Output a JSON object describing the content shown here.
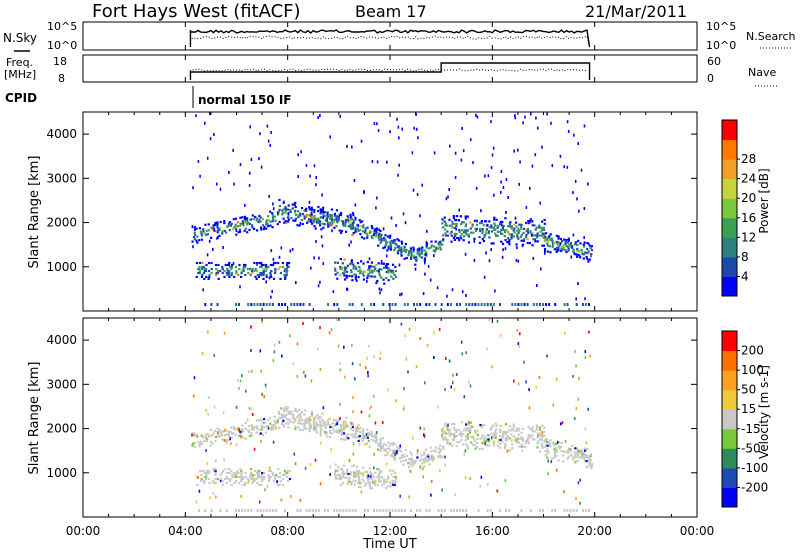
{
  "header": {
    "station": "Fort Hays West (fitACF)",
    "beam": "Beam 17",
    "date": "21/Mar/2011"
  },
  "status_panels": {
    "nsky_label": "N.Sky",
    "nsky_ticks": [
      "10^5",
      "10^0"
    ],
    "nsearch_label": "N.Search",
    "nsearch_ticks": [
      "10^5",
      "10^0"
    ],
    "freq_label": "Freq.",
    "freq_unit": "[MHz]",
    "freq_ticks": [
      "18",
      "8"
    ],
    "nave_label": "Nave",
    "nave_ticks": [
      "60",
      "0"
    ],
    "cpid_label": "CPID",
    "cpid_name": "normal 150 IF"
  },
  "chart_data": [
    {
      "type": "heatmap",
      "name": "power",
      "ylabel": "Slant Range [km]",
      "ylim": [
        0,
        4500
      ],
      "yticks": [
        "1000",
        "2000",
        "3000",
        "4000"
      ],
      "colorbar_label": "Power [dB]",
      "colorbar_ticks": [
        "4",
        "8",
        "12",
        "16",
        "20",
        "24",
        "28"
      ],
      "colors": [
        "#0000ff",
        "#1c49a8",
        "#2d8080",
        "#3aa050",
        "#78c83c",
        "#c8d23c",
        "#f0a028",
        "#ff7800",
        "#ff0000"
      ]
    },
    {
      "type": "heatmap",
      "name": "velocity",
      "ylabel": "Slant Range [km]",
      "ylim": [
        0,
        4500
      ],
      "yticks": [
        "1000",
        "2000",
        "3000",
        "4000"
      ],
      "colorbar_label": "Velocity [m s-1]",
      "colorbar_ticks": [
        "200",
        "100",
        "50",
        "15",
        "-15",
        "-50",
        "-100",
        "-200"
      ],
      "colors": [
        "#0000ff",
        "#1e4bb4",
        "#2d8c5a",
        "#78c83c",
        "#c8c8c8",
        "#f0c83c",
        "#ffa01e",
        "#ff6e00",
        "#ff0000"
      ]
    }
  ],
  "time_axis": {
    "label": "Time UT",
    "ticks": [
      "00:00",
      "04:00",
      "08:00",
      "12:00",
      "16:00",
      "20:00",
      "00:00"
    ],
    "data_start_hour": 4.2,
    "data_end_hour": 19.8
  }
}
